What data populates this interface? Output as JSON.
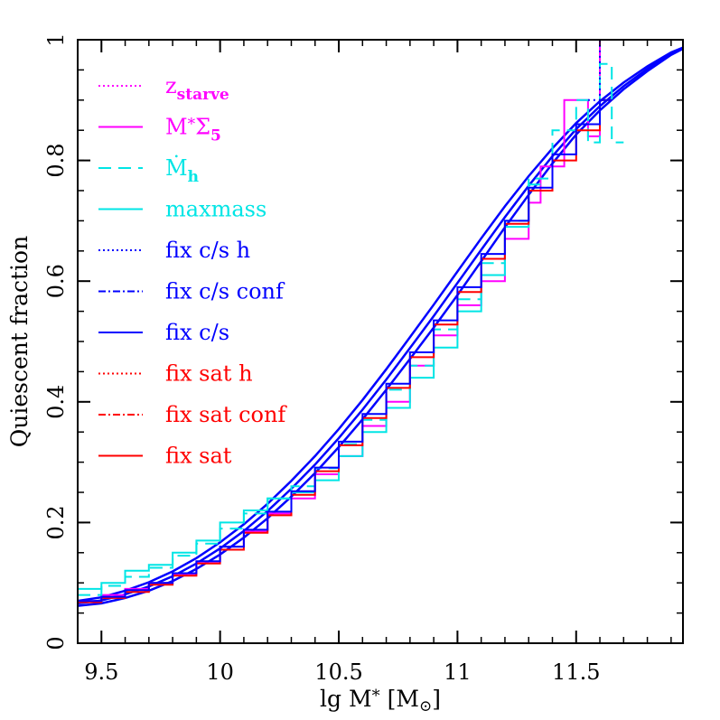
{
  "chart_data": {
    "type": "line",
    "title": "",
    "xlabel": "lg M",
    "xlabel_sub": "*",
    "xlabel_unit_open": "[M",
    "xlabel_unit_close": "]",
    "ylabel": "Quiescent fraction",
    "xlim": [
      9.4,
      11.95
    ],
    "ylim": [
      0,
      1
    ],
    "xticks": [
      {
        "value": 9.5,
        "label": "9.5"
      },
      {
        "value": 10,
        "label": "10"
      },
      {
        "value": 10.5,
        "label": "10.5"
      },
      {
        "value": 11,
        "label": "11"
      },
      {
        "value": 11.5,
        "label": "11.5"
      }
    ],
    "yticks": [
      {
        "value": 0,
        "label": "0"
      },
      {
        "value": 0.2,
        "label": "0.2"
      },
      {
        "value": 0.4,
        "label": "0.4"
      },
      {
        "value": 0.6,
        "label": "0.6"
      },
      {
        "value": 0.8,
        "label": "0.8"
      },
      {
        "value": 1,
        "label": "1"
      }
    ],
    "grid": false,
    "legend_position": "top-left",
    "colors": {
      "magenta": "#ff00ff",
      "cyan": "#00e5e5",
      "blue": "#0000ff",
      "red": "#ff0000"
    },
    "legend": [
      {
        "label": "z",
        "sub": "starve",
        "color": "#ff00ff",
        "style": "dotted"
      },
      {
        "label": "M",
        "sub_star": "*",
        "label2": "Σ",
        "sub": "5",
        "color": "#ff00ff",
        "style": "solid"
      },
      {
        "label": "Ṁ",
        "sub": "h",
        "color": "#00e5e5",
        "style": "dashed"
      },
      {
        "label": "maxmass",
        "color": "#00e5e5",
        "style": "solid"
      },
      {
        "label": "fix c/s h",
        "color": "#0000ff",
        "style": "dotted"
      },
      {
        "label": "fix c/s conf",
        "color": "#0000ff",
        "style": "dashdot"
      },
      {
        "label": "fix c/s",
        "color": "#0000ff",
        "style": "solid"
      },
      {
        "label": "fix sat h",
        "color": "#ff0000",
        "style": "dotted"
      },
      {
        "label": "fix sat conf",
        "color": "#ff0000",
        "style": "dashdot"
      },
      {
        "label": "fix sat",
        "color": "#ff0000",
        "style": "solid"
      }
    ],
    "series": [
      {
        "kind": "curve",
        "color": "#0000ff",
        "x": [
          9.4,
          9.5,
          9.6,
          9.7,
          9.8,
          9.9,
          10.0,
          10.1,
          10.2,
          10.3,
          10.4,
          10.5,
          10.6,
          10.7,
          10.8,
          10.9,
          11.0,
          11.1,
          11.2,
          11.3,
          11.4,
          11.5,
          11.6,
          11.7,
          11.8,
          11.9,
          11.95
        ],
        "y": [
          0.062,
          0.066,
          0.075,
          0.087,
          0.103,
          0.123,
          0.147,
          0.175,
          0.207,
          0.243,
          0.282,
          0.325,
          0.371,
          0.42,
          0.471,
          0.523,
          0.577,
          0.633,
          0.689,
          0.743,
          0.795,
          0.843,
          0.883,
          0.918,
          0.948,
          0.975,
          0.985
        ]
      },
      {
        "kind": "curve",
        "color": "#0000ff",
        "x": [
          9.4,
          9.5,
          9.6,
          9.7,
          9.8,
          9.9,
          10.0,
          10.1,
          10.2,
          10.3,
          10.4,
          10.5,
          10.6,
          10.7,
          10.8,
          10.9,
          11.0,
          11.1,
          11.2,
          11.3,
          11.4,
          11.5,
          11.6,
          11.7,
          11.8,
          11.9,
          11.95
        ],
        "y": [
          0.066,
          0.071,
          0.081,
          0.094,
          0.111,
          0.132,
          0.157,
          0.186,
          0.219,
          0.256,
          0.296,
          0.34,
          0.387,
          0.437,
          0.489,
          0.542,
          0.597,
          0.652,
          0.706,
          0.758,
          0.807,
          0.852,
          0.89,
          0.923,
          0.952,
          0.977,
          0.986
        ]
      },
      {
        "kind": "curve",
        "color": "#0000ff",
        "x": [
          9.4,
          9.5,
          9.6,
          9.7,
          9.8,
          9.9,
          10.0,
          10.1,
          10.2,
          10.3,
          10.4,
          10.5,
          10.6,
          10.7,
          10.8,
          10.9,
          11.0,
          11.1,
          11.2,
          11.3,
          11.4,
          11.5,
          11.6,
          11.7,
          11.8,
          11.9,
          11.95
        ],
        "y": [
          0.07,
          0.076,
          0.087,
          0.101,
          0.119,
          0.141,
          0.167,
          0.197,
          0.231,
          0.269,
          0.31,
          0.355,
          0.403,
          0.454,
          0.507,
          0.561,
          0.616,
          0.671,
          0.724,
          0.774,
          0.82,
          0.862,
          0.898,
          0.929,
          0.956,
          0.979,
          0.987
        ]
      },
      {
        "kind": "step",
        "color": "#ff00ff",
        "dash": "",
        "x": [
          9.4,
          9.5,
          9.6,
          9.7,
          9.8,
          9.9,
          10.0,
          10.1,
          10.2,
          10.3,
          10.4,
          10.5,
          10.6,
          10.7,
          10.8,
          10.9,
          11.0,
          11.1,
          11.2,
          11.3,
          11.35,
          11.45,
          11.55,
          11.6,
          11.65
        ],
        "y": [
          0.07,
          0.08,
          0.09,
          0.1,
          0.115,
          0.135,
          0.16,
          0.185,
          0.215,
          0.24,
          0.28,
          0.31,
          0.36,
          0.4,
          0.46,
          0.51,
          0.56,
          0.6,
          0.67,
          0.73,
          0.79,
          0.9,
          0.84,
          1.0,
          1.0
        ]
      },
      {
        "kind": "step",
        "color": "#00e5e5",
        "dash": "",
        "x": [
          9.4,
          9.5,
          9.6,
          9.7,
          9.8,
          9.9,
          10.0,
          10.1,
          10.2,
          10.3,
          10.4,
          10.5,
          10.6,
          10.7,
          10.8,
          10.9,
          11.0,
          11.1,
          11.2,
          11.3
        ],
        "y": [
          0.09,
          0.1,
          0.12,
          0.13,
          0.15,
          0.17,
          0.2,
          0.22,
          0.24,
          0.25,
          0.27,
          0.31,
          0.35,
          0.39,
          0.44,
          0.49,
          0.55,
          0.61,
          0.69,
          0.76
        ]
      },
      {
        "kind": "step",
        "color": "#00e5e5",
        "dash": "14 8",
        "x": [
          9.4,
          9.5,
          9.6,
          9.7,
          9.8,
          9.9,
          10.0,
          10.1,
          10.2,
          10.3,
          10.4,
          10.5,
          10.6,
          10.7,
          10.8,
          10.9,
          11.0,
          11.1,
          11.2,
          11.3,
          11.4,
          11.5,
          11.55,
          11.6,
          11.65
        ],
        "y": [
          0.08,
          0.095,
          0.11,
          0.125,
          0.145,
          0.165,
          0.19,
          0.215,
          0.24,
          0.26,
          0.29,
          0.33,
          0.37,
          0.42,
          0.46,
          0.52,
          0.57,
          0.63,
          0.7,
          0.77,
          0.85,
          0.9,
          0.83,
          0.96,
          0.83
        ]
      },
      {
        "kind": "step",
        "color": "#ff0000",
        "dash": "",
        "x": [
          9.4,
          9.5,
          9.6,
          9.7,
          9.8,
          9.9,
          10.0,
          10.1,
          10.2,
          10.3,
          10.4,
          10.5,
          10.6,
          10.7,
          10.8,
          10.9,
          11.0,
          11.1,
          11.2,
          11.3,
          11.4,
          11.5,
          11.6
        ],
        "y": [
          0.068,
          0.075,
          0.085,
          0.097,
          0.112,
          0.132,
          0.155,
          0.183,
          0.212,
          0.246,
          0.285,
          0.328,
          0.373,
          0.423,
          0.474,
          0.528,
          0.582,
          0.637,
          0.695,
          0.75,
          0.8,
          0.85,
          0.9
        ]
      },
      {
        "kind": "step",
        "color": "#0000ff",
        "dash": "",
        "x": [
          9.4,
          9.5,
          9.6,
          9.7,
          9.8,
          9.9,
          10.0,
          10.1,
          10.2,
          10.3,
          10.4,
          10.5,
          10.6,
          10.7,
          10.8,
          10.9,
          11.0,
          11.1,
          11.2,
          11.3,
          11.4,
          11.5,
          11.6
        ],
        "y": [
          0.07,
          0.077,
          0.088,
          0.1,
          0.116,
          0.136,
          0.16,
          0.188,
          0.218,
          0.252,
          0.291,
          0.334,
          0.38,
          0.43,
          0.482,
          0.535,
          0.59,
          0.645,
          0.7,
          0.755,
          0.81,
          0.86,
          0.9
        ]
      },
      {
        "kind": "step",
        "color": "#0000ff",
        "dash": "2 4",
        "x": [
          11.55,
          11.6,
          11.65,
          11.7
        ],
        "y": [
          0.9,
          1.0,
          1.0,
          1.0
        ]
      }
    ]
  }
}
